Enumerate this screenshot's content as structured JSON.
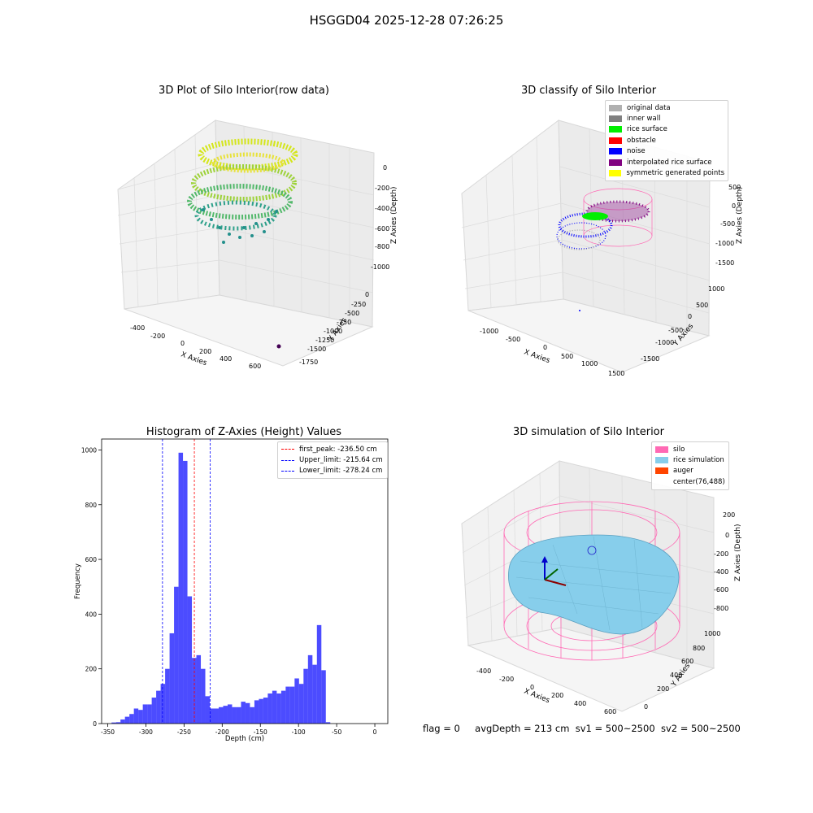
{
  "suptitle": "HSGGD04 2025-12-28 07:26:25",
  "panels": {
    "raw": {
      "title": "3D Plot of Silo Interior(row data)",
      "xlabel": "X Axies",
      "ylabel": "Y Axies",
      "zlabel": "Z Axies (Depth)",
      "xticks": [
        "-400",
        "-200",
        "0",
        "200",
        "400",
        "600"
      ],
      "yticks": [
        "0",
        "-250",
        "-500",
        "-750",
        "-1000",
        "-1250",
        "-1500",
        "-1750"
      ],
      "zticks": [
        "0",
        "-200",
        "-400",
        "-600",
        "-800",
        "-1000"
      ]
    },
    "classify": {
      "title": "3D classify of Silo Interior",
      "xlabel": "X Axies",
      "ylabel": "Y Axies",
      "zlabel": "Z Axies (Depth)",
      "xticks": [
        "-1000",
        "-500",
        "0",
        "500",
        "1000",
        "1500"
      ],
      "yticks": [
        "1000",
        "500",
        "0",
        "-500",
        "-1000",
        "-1500"
      ],
      "zticks": [
        "500",
        "0",
        "-500",
        "-1000",
        "-1500"
      ],
      "legend": [
        {
          "label": "original data",
          "color": "#b0b0b0"
        },
        {
          "label": "inner wall",
          "color": "#808080"
        },
        {
          "label": "rice surface",
          "color": "#00ee00"
        },
        {
          "label": "obstacle",
          "color": "#ff0000"
        },
        {
          "label": "noise",
          "color": "#0000ff"
        },
        {
          "label": "interpolated rice surface",
          "color": "#800080"
        },
        {
          "label": "symmetric generated points",
          "color": "#ffff00"
        }
      ]
    },
    "simulation": {
      "title": "3D simulation of Silo Interior",
      "xlabel": "X Axies",
      "ylabel": "Y Axies",
      "zlabel": "Z Axies (Depth)",
      "xticks": [
        "-400",
        "-200",
        "0",
        "200",
        "400",
        "600"
      ],
      "yticks": [
        "0",
        "200",
        "400",
        "600",
        "800",
        "1000"
      ],
      "zticks": [
        "200",
        "0",
        "-200",
        "-400",
        "-600",
        "-800"
      ],
      "legend": [
        {
          "label": "silo",
          "color": "#ff69b4"
        },
        {
          "label": "rice simulation",
          "color": "#87ceeb"
        },
        {
          "label": "auger",
          "color": "#ff4500"
        },
        {
          "label": "center(76,488)",
          "color": ""
        }
      ]
    }
  },
  "chart_data": {
    "type": "bar",
    "title": "Histogram of Z-Axies (Height) Values",
    "xlabel": "Depth (cm)",
    "ylabel": "Frequency",
    "xlim": [
      -358,
      17
    ],
    "ylim": [
      0,
      1040
    ],
    "xticks": [
      -350,
      -300,
      -250,
      -200,
      -150,
      -100,
      -50,
      0
    ],
    "yticks": [
      0,
      200,
      400,
      600,
      800,
      1000
    ],
    "bin_width": 5.85,
    "bin_start": -345,
    "values": [
      4,
      5,
      15,
      25,
      35,
      55,
      50,
      70,
      70,
      95,
      120,
      145,
      200,
      330,
      500,
      990,
      960,
      465,
      240,
      250,
      200,
      100,
      55,
      55,
      60,
      65,
      70,
      60,
      60,
      80,
      75,
      60,
      85,
      90,
      95,
      110,
      120,
      110,
      120,
      135,
      135,
      165,
      145,
      200,
      250,
      215,
      360,
      195,
      5
    ],
    "bar_color": "#0000ff",
    "vlines": [
      {
        "label": "first_peak: -236.50 cm",
        "x": -236.5,
        "color": "#ff0000"
      },
      {
        "label": "Upper_limit: -215.64 cm",
        "x": -215.64,
        "color": "#0000ff"
      },
      {
        "label": "Lower_limit: -278.24 cm",
        "x": -278.24,
        "color": "#0000ff"
      }
    ],
    "grid": false,
    "legend_position": "top-right"
  },
  "status": {
    "flag": "flag = 0",
    "avg_depth": "avgDepth = 213 cm",
    "sv1": "sv1 = 500~2500",
    "sv2": "sv2 = 500~2500"
  }
}
